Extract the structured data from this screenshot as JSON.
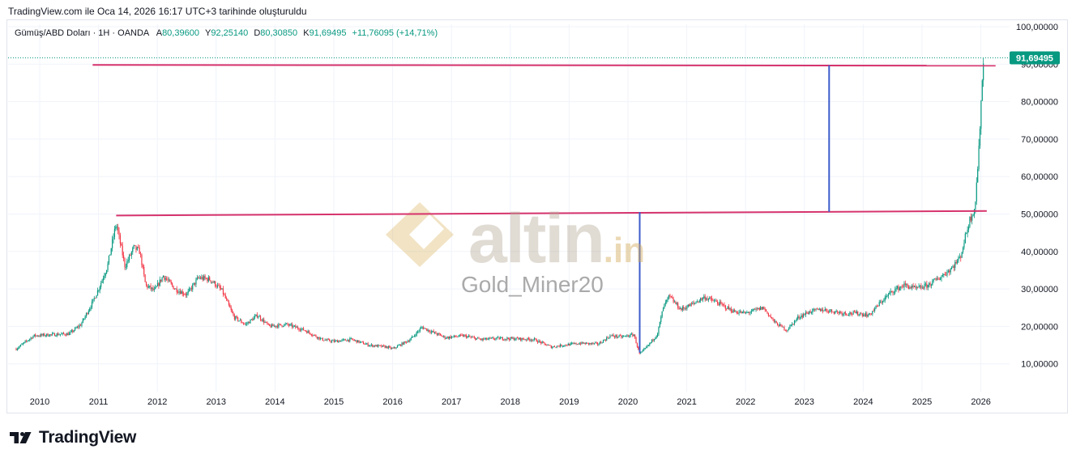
{
  "header": {
    "created_text": "TradingView.com ile Oca 14, 2026 16:17 UTC+3 tarihinde oluşturuldu"
  },
  "symbol": {
    "name": "Gümüş/ABD Doları · 1H · OANDA",
    "open_label": "A",
    "open_value": "80,39600",
    "high_label": "Y",
    "high_value": "92,25140",
    "low_label": "D",
    "low_value": "80,30850",
    "close_label": "K",
    "close_value": "91,69495",
    "change_text": "+11,76095 (+14,71%)"
  },
  "watermark": {
    "brand": "altin",
    "brand_suffix": ".in",
    "author": "Gold_Miner20"
  },
  "footer": {
    "logo_text": "TradingView"
  },
  "colors": {
    "up": "#089981",
    "down": "#f23645",
    "hline": "#d6336c",
    "vline": "#3d5ccc",
    "grid": "#f0f3fa",
    "price_label_bg": "#089981"
  },
  "chart_data": {
    "type": "candlestick",
    "x_tick_labels": [
      "2010",
      "2011",
      "2012",
      "2013",
      "2014",
      "2015",
      "2016",
      "2017",
      "2018",
      "2019",
      "2020",
      "2021",
      "2022",
      "2023",
      "2024",
      "2025",
      "2026"
    ],
    "y_tick_labels": [
      "10,00000",
      "20,00000",
      "30,00000",
      "40,00000",
      "50,00000",
      "60,00000",
      "70,00000",
      "80,00000",
      "90,00000",
      "100,00000"
    ],
    "y_ticks": [
      10,
      20,
      30,
      40,
      50,
      60,
      70,
      80,
      90,
      100
    ],
    "ylim": [
      3.5,
      102
    ],
    "xlim": [
      2009.55,
      2026.4
    ],
    "current_price": 91.69495,
    "current_price_label": "91,69495",
    "series": [
      {
        "x": [
          2009.6,
          2009.9,
          2010.2,
          2010.5,
          2010.7,
          2010.9,
          2011.0,
          2011.15,
          2011.3,
          2011.45,
          2011.6,
          2011.7,
          2011.8,
          2011.95,
          2012.1,
          2012.3,
          2012.5,
          2012.7,
          2012.9,
          2013.1,
          2013.3,
          2013.5,
          2013.7,
          2013.9,
          2014.2,
          2014.5,
          2014.8,
          2015.0,
          2015.3,
          2015.6,
          2015.9,
          2016.0,
          2016.3,
          2016.5,
          2016.6,
          2016.9,
          2017.2,
          2017.5,
          2017.8,
          2018.1,
          2018.4,
          2018.7,
          2018.9,
          2019.2,
          2019.5,
          2019.7,
          2019.9,
          2020.1,
          2020.2,
          2020.35,
          2020.5,
          2020.6,
          2020.7,
          2020.9,
          2021.1,
          2021.3,
          2021.5,
          2021.8,
          2022.0,
          2022.3,
          2022.5,
          2022.7,
          2022.9,
          2023.1,
          2023.3,
          2023.5,
          2023.7,
          2023.9,
          2024.1,
          2024.3,
          2024.5,
          2024.7,
          2024.9,
          2025.1,
          2025.3,
          2025.5,
          2025.65,
          2025.8,
          2025.9,
          2025.97,
          2026.0,
          2026.05
        ],
        "values": [
          14.0,
          17.5,
          17.8,
          18.0,
          20.5,
          26.5,
          30.0,
          36.0,
          47.5,
          36.0,
          41.0,
          40.0,
          31.0,
          29.5,
          33.5,
          30.0,
          28.5,
          33.0,
          32.5,
          29.5,
          22.5,
          20.5,
          23.0,
          20.0,
          20.5,
          19.0,
          16.5,
          16.0,
          16.5,
          15.0,
          14.5,
          14.0,
          16.5,
          19.8,
          19.0,
          17.0,
          17.5,
          16.5,
          16.8,
          16.7,
          16.5,
          14.5,
          15.0,
          15.5,
          15.3,
          17.5,
          17.2,
          17.8,
          12.5,
          15.0,
          18.0,
          25.0,
          28.0,
          24.5,
          26.0,
          27.8,
          26.5,
          24.0,
          23.5,
          25.0,
          21.0,
          19.0,
          22.5,
          24.0,
          24.5,
          24.0,
          23.5,
          23.5,
          23.0,
          26.5,
          29.5,
          31.0,
          30.0,
          31.0,
          33.0,
          35.5,
          38.5,
          48.0,
          52.0,
          68.0,
          80.0,
          91.69
        ]
      }
    ],
    "horizontal_lines": [
      {
        "from_x": 2011.3,
        "to_x": 2026.1,
        "y_start": 49.6,
        "y_end": 50.8
      },
      {
        "from_x": 2010.9,
        "to_x": 2026.25,
        "y_start": 89.8,
        "y_end": 89.6
      }
    ],
    "vertical_lines": [
      {
        "x": 2020.2,
        "y_from": 13.0,
        "y_to": 50.5
      },
      {
        "x": 2023.42,
        "y_from": 50.6,
        "y_to": 89.7
      }
    ]
  }
}
